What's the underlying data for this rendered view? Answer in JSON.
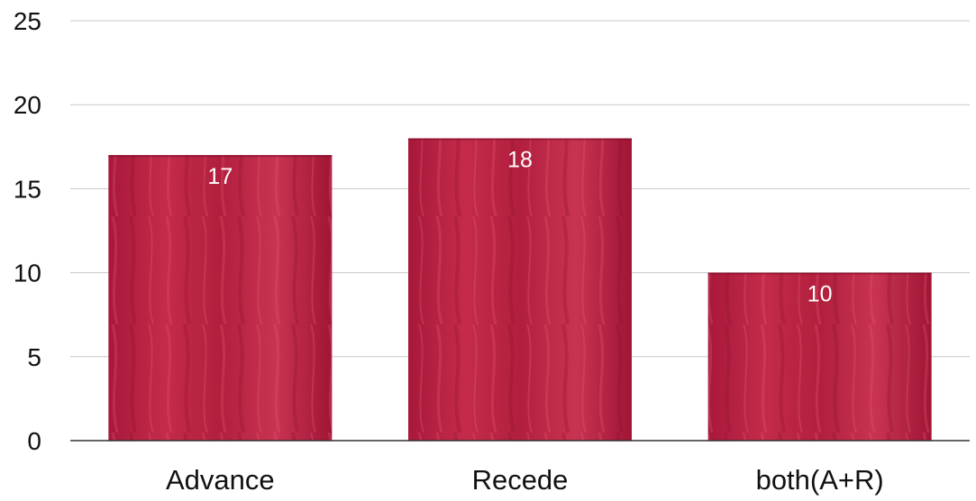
{
  "chart_data": {
    "type": "bar",
    "title": "",
    "xlabel": "",
    "ylabel": "",
    "categories": [
      "Advance",
      "Recede",
      "both(A+R)"
    ],
    "values": [
      17,
      18,
      10
    ],
    "data_labels": [
      "17",
      "18",
      "10"
    ],
    "ylim": [
      0,
      25
    ],
    "yticks": [
      0,
      5,
      10,
      15,
      20,
      25
    ],
    "ytick_labels": [
      "0",
      "5",
      "10",
      "15",
      "20",
      "25"
    ],
    "grid": true,
    "legend": "none",
    "bar_color": "#b8213f",
    "bar_texture": "painted red brush strokes"
  }
}
